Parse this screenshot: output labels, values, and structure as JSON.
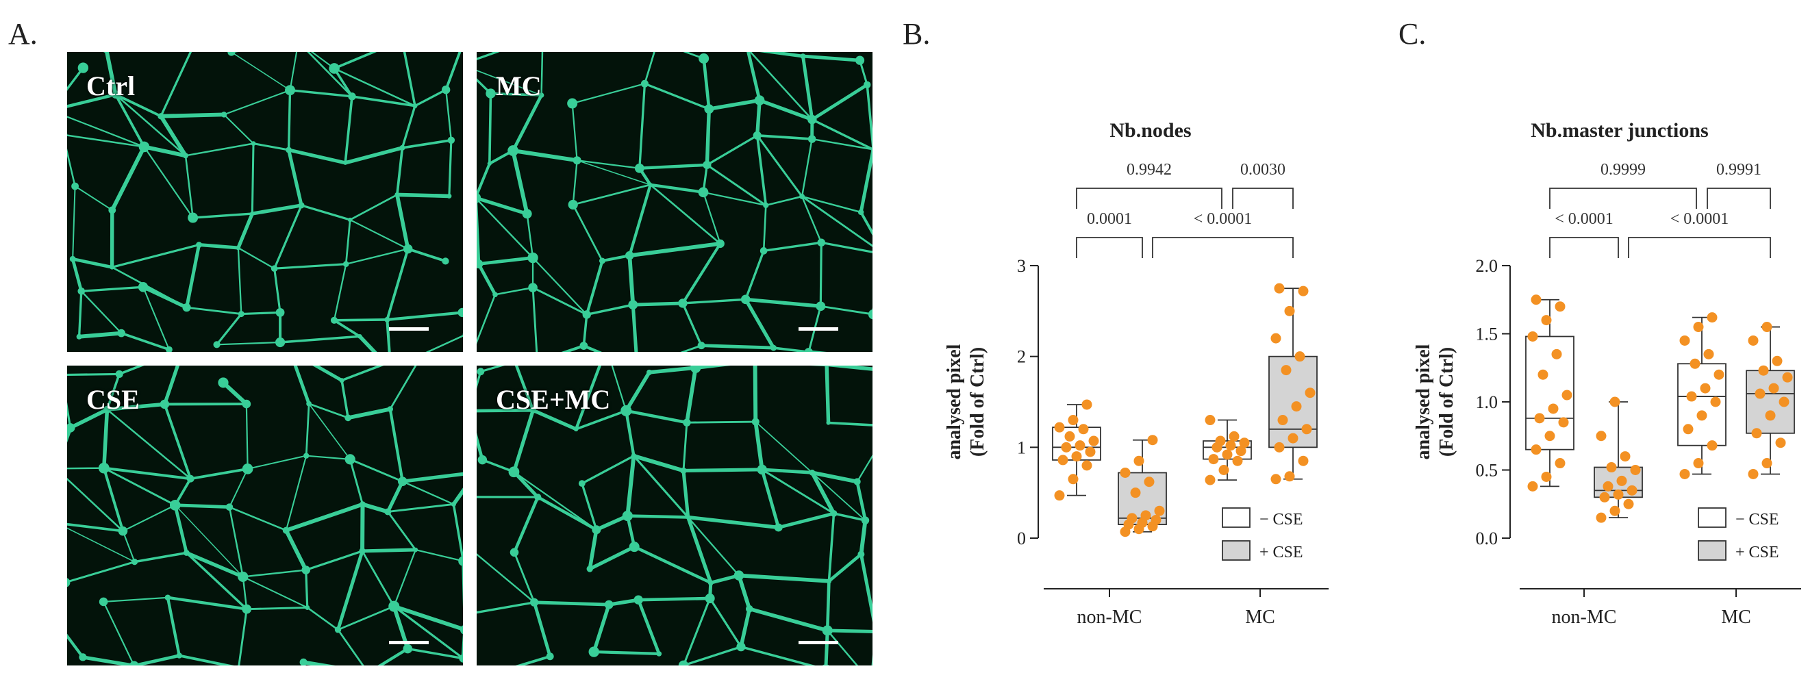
{
  "panelA": {
    "letter": "A.",
    "images": [
      {
        "label": "Ctrl"
      },
      {
        "label": "MC"
      },
      {
        "label": "CSE"
      },
      {
        "label": "CSE+MC"
      }
    ]
  },
  "colors": {
    "box_open": "#ffffff",
    "box_filled": "#d4d4d4",
    "points": "#f39123",
    "micro_bg": "#03130a",
    "network": "#3fe3a8"
  },
  "chart_data": [
    {
      "panel": "B.",
      "type": "box",
      "title": "Nb.nodes",
      "ylabel": [
        "analysed pixel",
        "(Fold of Ctrl)"
      ],
      "ylim": [
        0,
        3
      ],
      "yticks": [
        "0",
        "1",
        "2",
        "3"
      ],
      "categories": [
        "non-MC",
        "MC"
      ],
      "legend": {
        "placement": "bottom-right",
        "entries": [
          "− CSE",
          "+ CSE"
        ]
      },
      "series": [
        {
          "name": "− CSE",
          "boxes": [
            {
              "category": "non-MC",
              "min": 0.47,
              "q1": 0.86,
              "median": 1.0,
              "q3": 1.22,
              "max": 1.47,
              "points": [
                0.47,
                0.65,
                0.8,
                0.86,
                0.9,
                0.95,
                1.0,
                1.02,
                1.07,
                1.12,
                1.2,
                1.22,
                1.3,
                1.47
              ]
            },
            {
              "category": "MC",
              "min": 0.64,
              "q1": 0.87,
              "median": 1.0,
              "q3": 1.07,
              "max": 1.3,
              "points": [
                0.64,
                0.75,
                0.85,
                0.87,
                0.92,
                0.96,
                1.0,
                1.02,
                1.05,
                1.07,
                1.12,
                1.3
              ]
            }
          ]
        },
        {
          "name": "+ CSE",
          "boxes": [
            {
              "category": "non-MC",
              "min": 0.07,
              "q1": 0.15,
              "median": 0.22,
              "q3": 0.72,
              "max": 1.08,
              "points": [
                0.07,
                0.1,
                0.13,
                0.15,
                0.17,
                0.2,
                0.22,
                0.25,
                0.3,
                0.5,
                0.62,
                0.72,
                0.85,
                1.08
              ]
            },
            {
              "category": "MC",
              "min": 0.65,
              "q1": 1.0,
              "median": 1.2,
              "q3": 2.0,
              "max": 2.75,
              "points": [
                0.65,
                0.68,
                0.85,
                1.0,
                1.1,
                1.2,
                1.3,
                1.45,
                1.6,
                1.85,
                2.0,
                2.2,
                2.5,
                2.72,
                2.75
              ]
            }
          ]
        }
      ],
      "comparisons": [
        {
          "label": "0.0001",
          "from": 0,
          "to": 1,
          "level": 0
        },
        {
          "label": "< 0.0001",
          "from": 1,
          "to": 3,
          "level": 0
        },
        {
          "label": "0.9942",
          "from": 0,
          "to": 2,
          "level": 1
        },
        {
          "label": "0.0030",
          "from": 2,
          "to": 3,
          "level": 1
        }
      ]
    },
    {
      "panel": "C.",
      "type": "box",
      "title": "Nb.master junctions",
      "ylabel": [
        "analysed pixel",
        "(Fold of Ctrl)"
      ],
      "ylim": [
        0,
        2
      ],
      "yticks": [
        "0.0",
        "0.5",
        "1.0",
        "1.5",
        "2.0"
      ],
      "categories": [
        "non-MC",
        "MC"
      ],
      "legend": {
        "placement": "bottom-right",
        "entries": [
          "− CSE",
          "+ CSE"
        ]
      },
      "series": [
        {
          "name": "− CSE",
          "boxes": [
            {
              "category": "non-MC",
              "min": 0.38,
              "q1": 0.65,
              "median": 0.88,
              "q3": 1.48,
              "max": 1.75,
              "points": [
                0.38,
                0.45,
                0.55,
                0.65,
                0.75,
                0.85,
                0.88,
                0.95,
                1.05,
                1.2,
                1.35,
                1.48,
                1.6,
                1.7,
                1.75
              ]
            },
            {
              "category": "MC",
              "min": 0.47,
              "q1": 0.68,
              "median": 1.04,
              "q3": 1.28,
              "max": 1.62,
              "points": [
                0.47,
                0.55,
                0.68,
                0.8,
                0.9,
                1.0,
                1.04,
                1.1,
                1.2,
                1.28,
                1.35,
                1.45,
                1.55,
                1.62
              ]
            }
          ]
        },
        {
          "name": "+ CSE",
          "boxes": [
            {
              "category": "non-MC",
              "min": 0.15,
              "q1": 0.3,
              "median": 0.35,
              "q3": 0.52,
              "max": 1.0,
              "points": [
                0.15,
                0.2,
                0.25,
                0.3,
                0.32,
                0.35,
                0.38,
                0.42,
                0.5,
                0.52,
                0.6,
                0.75,
                1.0
              ]
            },
            {
              "category": "MC",
              "min": 0.47,
              "q1": 0.77,
              "median": 1.06,
              "q3": 1.23,
              "max": 1.55,
              "points": [
                0.47,
                0.55,
                0.7,
                0.77,
                0.9,
                1.0,
                1.06,
                1.1,
                1.18,
                1.23,
                1.3,
                1.45,
                1.55
              ]
            }
          ]
        }
      ],
      "comparisons": [
        {
          "label": "< 0.0001",
          "from": 0,
          "to": 1,
          "level": 0
        },
        {
          "label": "< 0.0001",
          "from": 1,
          "to": 3,
          "level": 0
        },
        {
          "label": "0.9999",
          "from": 0,
          "to": 2,
          "level": 1
        },
        {
          "label": "0.9991",
          "from": 2,
          "to": 3,
          "level": 1
        }
      ]
    }
  ]
}
